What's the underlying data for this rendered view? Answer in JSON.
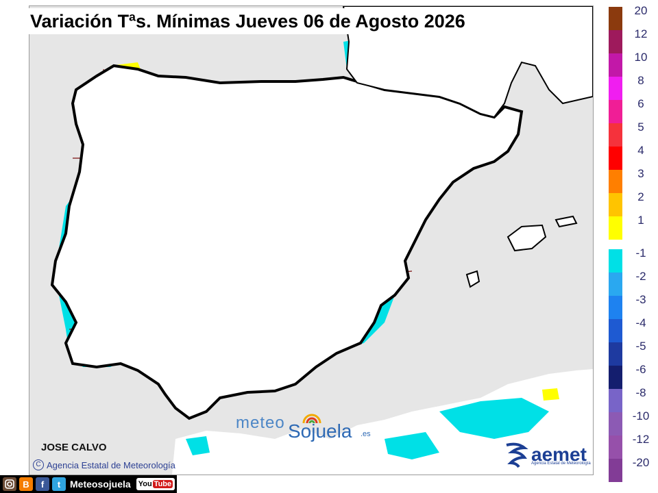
{
  "title": "Variación Tªs. Mínimas Jueves 06 de Agosto 2026",
  "author": "JOSE CALVO",
  "agency_credit": "Agencia Estatal de Meteorología",
  "copyright_symbol": "C",
  "watermark": {
    "meteo": "meteo",
    "sojuela": "Sojuela",
    "tld": ".es"
  },
  "aemet_logo": {
    "word": "aemet",
    "subtitle": "Agencia Estatal de Meteorología"
  },
  "social": {
    "handle": "Meteosojuela",
    "youtube_you": "You",
    "youtube_tube": "Tube",
    "facebook": "f",
    "twitter": "t",
    "blogger": "B"
  },
  "legend": {
    "warm": [
      {
        "label": "20",
        "color": "#8b3a0e"
      },
      {
        "label": "12",
        "color": "#9e1a5c"
      },
      {
        "label": "10",
        "color": "#c218a8"
      },
      {
        "label": "8",
        "color": "#f01ef0"
      },
      {
        "label": "6",
        "color": "#f01e96"
      },
      {
        "label": "5",
        "color": "#f5323c"
      },
      {
        "label": "4",
        "color": "#ff0000"
      },
      {
        "label": "3",
        "color": "#ff7f00"
      },
      {
        "label": "2",
        "color": "#ffc400"
      },
      {
        "label": "1",
        "color": "#ffff00"
      }
    ],
    "cold": [
      {
        "label": "-1",
        "color": "#00e0e6"
      },
      {
        "label": "-2",
        "color": "#2aa8f0"
      },
      {
        "label": "-3",
        "color": "#1e82f0"
      },
      {
        "label": "-4",
        "color": "#1e5ad2"
      },
      {
        "label": "-5",
        "color": "#1e3aa0"
      },
      {
        "label": "-6",
        "color": "#141e6e"
      },
      {
        "label": "-8",
        "color": "#7864c8"
      },
      {
        "label": "-10",
        "color": "#8c5ab4"
      },
      {
        "label": "-12",
        "color": "#9650aa"
      },
      {
        "label": "-20",
        "color": "#823c96"
      }
    ]
  },
  "map_colors": {
    "sea": "#e6e6e6",
    "land": "#ffffff",
    "coast": "#000000",
    "province_border": "#7a1010",
    "anomaly_plus1": "#ffff00",
    "anomaly_plus2": "#ffc400",
    "anomaly_plus3": "#ff7f00",
    "anomaly_minus1": "#00e0e6",
    "anomaly_minus2": "#2aa8f0",
    "anomaly_minus3": "#1e5ad2"
  }
}
